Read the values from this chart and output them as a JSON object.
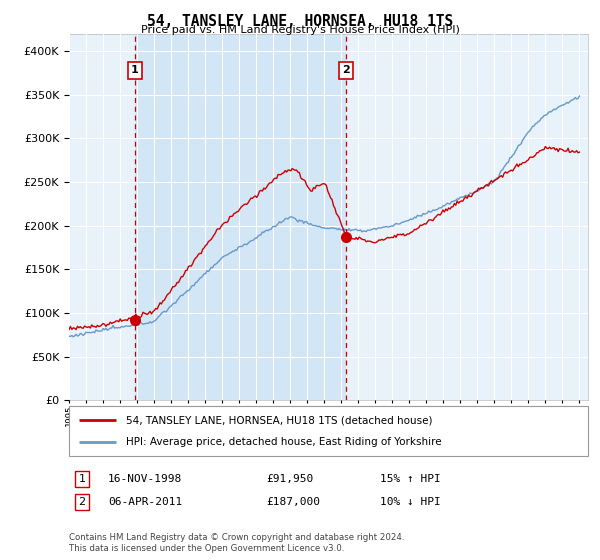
{
  "title": "54, TANSLEY LANE, HORNSEA, HU18 1TS",
  "subtitle": "Price paid vs. HM Land Registry's House Price Index (HPI)",
  "legend_line1": "54, TANSLEY LANE, HORNSEA, HU18 1TS (detached house)",
  "legend_line2": "HPI: Average price, detached house, East Riding of Yorkshire",
  "footnote": "Contains HM Land Registry data © Crown copyright and database right 2024.\nThis data is licensed under the Open Government Licence v3.0.",
  "annotation1_date": "16-NOV-1998",
  "annotation1_price": "£91,950",
  "annotation1_hpi": "15% ↑ HPI",
  "annotation2_date": "06-APR-2011",
  "annotation2_price": "£187,000",
  "annotation2_hpi": "10% ↓ HPI",
  "price_color": "#cc0000",
  "hpi_color": "#6699cc",
  "shade_color": "#d0e4f5",
  "vline_color": "#cc0000",
  "annotation_box_color": "#cc0000",
  "ylim": [
    0,
    420000
  ],
  "yticks": [
    0,
    50000,
    100000,
    150000,
    200000,
    250000,
    300000,
    350000,
    400000
  ],
  "sale1_year": 1998.88,
  "sale1_price": 91950,
  "sale2_year": 2011.27,
  "sale2_price": 187000
}
